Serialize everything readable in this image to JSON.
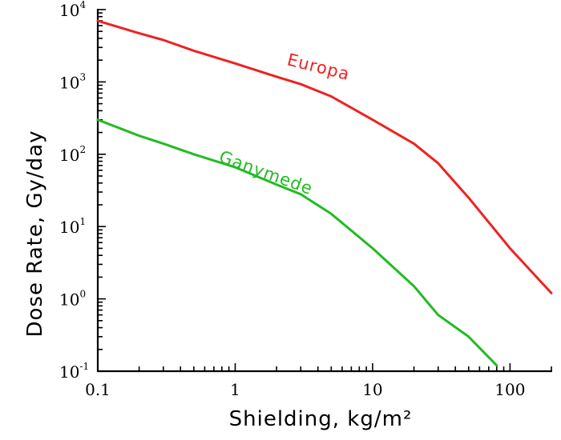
{
  "chart_data": {
    "type": "line",
    "xlabel": "Shielding, kg/m²",
    "ylabel": "Dose Rate, Gy/day",
    "x_scale": "log",
    "y_scale": "log",
    "xlim": [
      0.1,
      200
    ],
    "ylim": [
      0.1,
      10000
    ],
    "grid": false,
    "x_ticks": [
      {
        "value": 0.1,
        "label": "0.1"
      },
      {
        "value": 1,
        "label": "1"
      },
      {
        "value": 10,
        "label": "10"
      },
      {
        "value": 100,
        "label": "100"
      }
    ],
    "y_ticks": [
      {
        "value": 10000,
        "base": "10",
        "exp": "4"
      },
      {
        "value": 1000,
        "base": "10",
        "exp": "3"
      },
      {
        "value": 100,
        "base": "10",
        "exp": "2"
      },
      {
        "value": 10,
        "base": "10",
        "exp": "1"
      },
      {
        "value": 1,
        "base": "10",
        "exp": "0"
      },
      {
        "value": 0.1,
        "base": "10",
        "exp": "-1"
      }
    ],
    "series": [
      {
        "name": "Europa",
        "color": "#ee2222",
        "x": [
          0.1,
          0.2,
          0.3,
          0.5,
          1,
          2,
          3,
          5,
          10,
          20,
          30,
          50,
          100,
          200
        ],
        "y": [
          7000,
          4700,
          3800,
          2700,
          1800,
          1180,
          930,
          630,
          300,
          140,
          75,
          25,
          5,
          1.2
        ]
      },
      {
        "name": "Ganymede",
        "color": "#22bb22",
        "x": [
          0.1,
          0.2,
          0.3,
          0.5,
          1,
          2,
          3,
          5,
          10,
          20,
          30,
          50,
          80
        ],
        "y": [
          300,
          180,
          140,
          100,
          66,
          38,
          28,
          15,
          5,
          1.5,
          0.6,
          0.3,
          0.12
        ]
      }
    ]
  }
}
